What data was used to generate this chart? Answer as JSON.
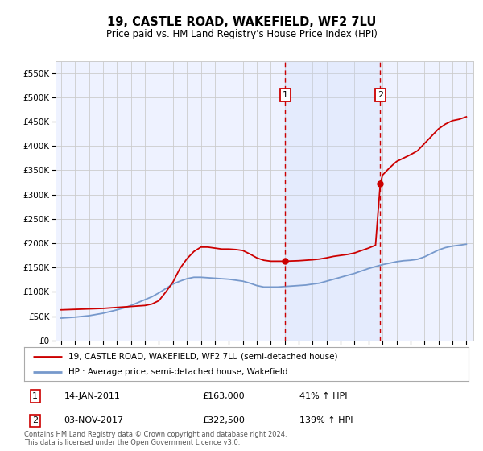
{
  "title": "19, CASTLE ROAD, WAKEFIELD, WF2 7LU",
  "subtitle": "Price paid vs. HM Land Registry's House Price Index (HPI)",
  "legend_line1": "19, CASTLE ROAD, WAKEFIELD, WF2 7LU (semi-detached house)",
  "legend_line2": "HPI: Average price, semi-detached house, Wakefield",
  "footnote": "Contains HM Land Registry data © Crown copyright and database right 2024.\nThis data is licensed under the Open Government Licence v3.0.",
  "purchase1_date": "14-JAN-2011",
  "purchase1_price": 163000,
  "purchase1_pct": "41%",
  "purchase2_date": "03-NOV-2017",
  "purchase2_price": 322500,
  "purchase2_pct": "139%",
  "ylim": [
    0,
    575000
  ],
  "yticks": [
    0,
    50000,
    100000,
    150000,
    200000,
    250000,
    300000,
    350000,
    400000,
    450000,
    500000,
    550000
  ],
  "background_color": "#ffffff",
  "plot_bg": "#eef2ff",
  "red_line_color": "#cc0000",
  "blue_line_color": "#7799cc",
  "grid_color": "#cccccc",
  "purchase1_year": 2011.04,
  "purchase2_year": 2017.84,
  "shade_color": "#dde8ff"
}
